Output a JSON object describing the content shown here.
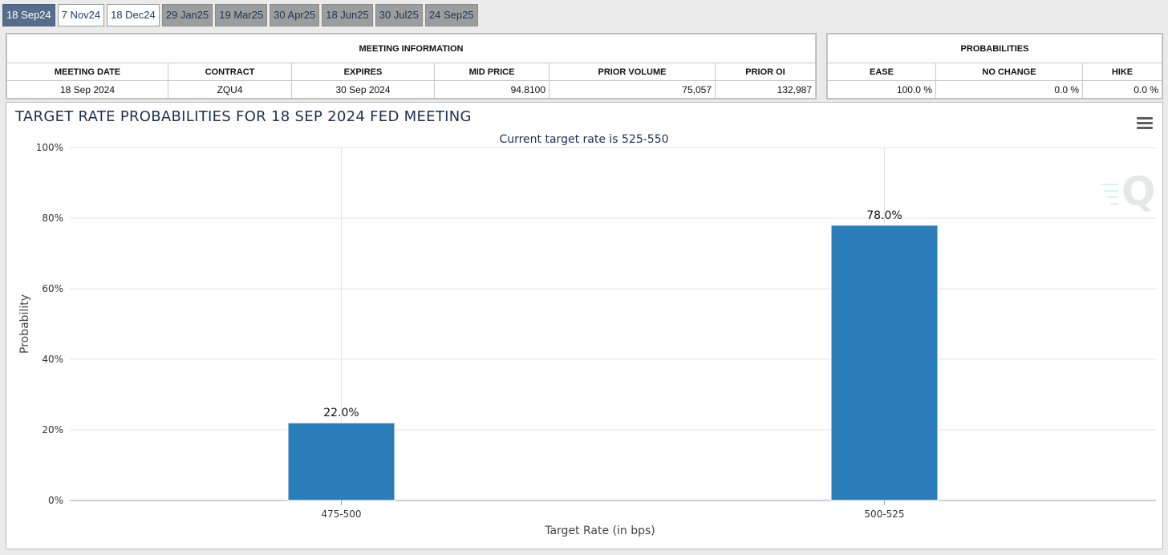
{
  "tabs": [
    {
      "label": "18 Sep24",
      "style": "active"
    },
    {
      "label": "7 Nov24",
      "style": "light"
    },
    {
      "label": "18 Dec24",
      "style": "light"
    },
    {
      "label": "29 Jan25",
      "style": "dark"
    },
    {
      "label": "19 Mar25",
      "style": "dark"
    },
    {
      "label": "30 Apr25",
      "style": "dark"
    },
    {
      "label": "18 Jun25",
      "style": "dark"
    },
    {
      "label": "30 Jul25",
      "style": "dark"
    },
    {
      "label": "24 Sep25",
      "style": "dark"
    }
  ],
  "meeting_info": {
    "title": "MEETING INFORMATION",
    "headers": [
      "MEETING DATE",
      "CONTRACT",
      "EXPIRES",
      "MID PRICE",
      "PRIOR VOLUME",
      "PRIOR OI"
    ],
    "row": [
      "18 Sep 2024",
      "ZQU4",
      "30 Sep 2024",
      "94.8100",
      "75,057",
      "132,987"
    ]
  },
  "probabilities": {
    "title": "PROBABILITIES",
    "headers": [
      "EASE",
      "NO CHANGE",
      "HIKE"
    ],
    "row": [
      "100.0 %",
      "0.0 %",
      "0.0 %"
    ]
  },
  "chart": {
    "title": "TARGET RATE PROBABILITIES FOR 18 SEP 2024 FED MEETING",
    "menu_icon": "hamburger-menu-icon",
    "watermark_icon": "q-logo-icon",
    "bar_color": "#2a7db9"
  },
  "chart_data": {
    "type": "bar",
    "title": "",
    "subtitle": "Current target rate is 525-550",
    "categories": [
      "475-500",
      "500-525"
    ],
    "values": [
      22.0,
      78.0
    ],
    "data_labels": [
      "22.0%",
      "78.0%"
    ],
    "xlabel": "Target Rate (in bps)",
    "ylabel": "Probability",
    "ylim": [
      0,
      100
    ],
    "yticks": [
      "0%",
      "20%",
      "40%",
      "60%",
      "80%",
      "100%"
    ],
    "grid": true,
    "legend": "none"
  }
}
